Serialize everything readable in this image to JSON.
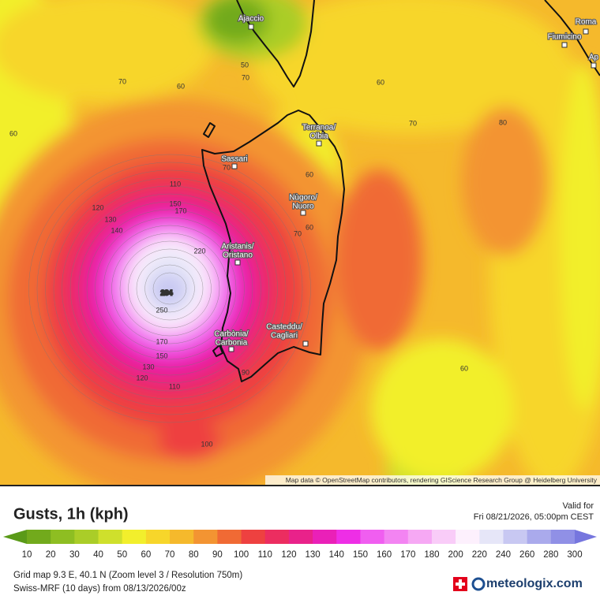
{
  "map": {
    "places": [
      [
        "Ajaccio"
      ],
      [
        "Roma"
      ],
      [
        "Fiumicino"
      ],
      [
        "Ap"
      ],
      [
        "Terranoa/",
        "Olbia"
      ],
      [
        "Sassari"
      ],
      [
        "Nùgoro/",
        "Nuoro"
      ],
      [
        "Aristanis/",
        "Oristano"
      ],
      [
        "Casteddu/",
        "Cagliari"
      ],
      [
        "Carbònia/",
        "Carbonia"
      ]
    ],
    "contour_labels": [
      50,
      70,
      70,
      60,
      60,
      70,
      80,
      60,
      70,
      60,
      110,
      150,
      170,
      120,
      130,
      140,
      220,
      284,
      250,
      70,
      60,
      170,
      150,
      130,
      120,
      110,
      90,
      100,
      60
    ],
    "attribution": "Map data © OpenStreetMap contributors, rendering GIScience Research Group @ Heidelberg University"
  },
  "legend": {
    "title": "Gusts, 1h (kph)",
    "valid_label": "Valid for",
    "valid_time": "Fri 08/21/2026, 05:00pm CEST",
    "scale": {
      "ticks": [
        10,
        20,
        30,
        40,
        50,
        60,
        70,
        80,
        90,
        100,
        110,
        120,
        130,
        140,
        150,
        160,
        170,
        180,
        200,
        220,
        240,
        260,
        280,
        300
      ],
      "colors": [
        "#5a9a18",
        "#72aa1c",
        "#8ebe22",
        "#aacd28",
        "#cfe02c",
        "#f2ef2c",
        "#f7d62a",
        "#f5b92c",
        "#f39432",
        "#f06a34",
        "#ee4140",
        "#ec2d60",
        "#e9228a",
        "#ea20b8",
        "#ee2ee6",
        "#f05ef0",
        "#f384f2",
        "#f6a8f4",
        "#f9ccf8",
        "#fdf0fd",
        "#e6e6f8",
        "#c8c8f2",
        "#aaaaec",
        "#9090e6",
        "#7676de"
      ]
    }
  },
  "footer": {
    "grid_info": "Grid map 9.3 E, 40.1 N (Zoom level 3 / Resolution 750m)",
    "model_info": "Swiss-MRF (10 days) from 08/13/2026/00z",
    "brand": "meteologix.com"
  }
}
